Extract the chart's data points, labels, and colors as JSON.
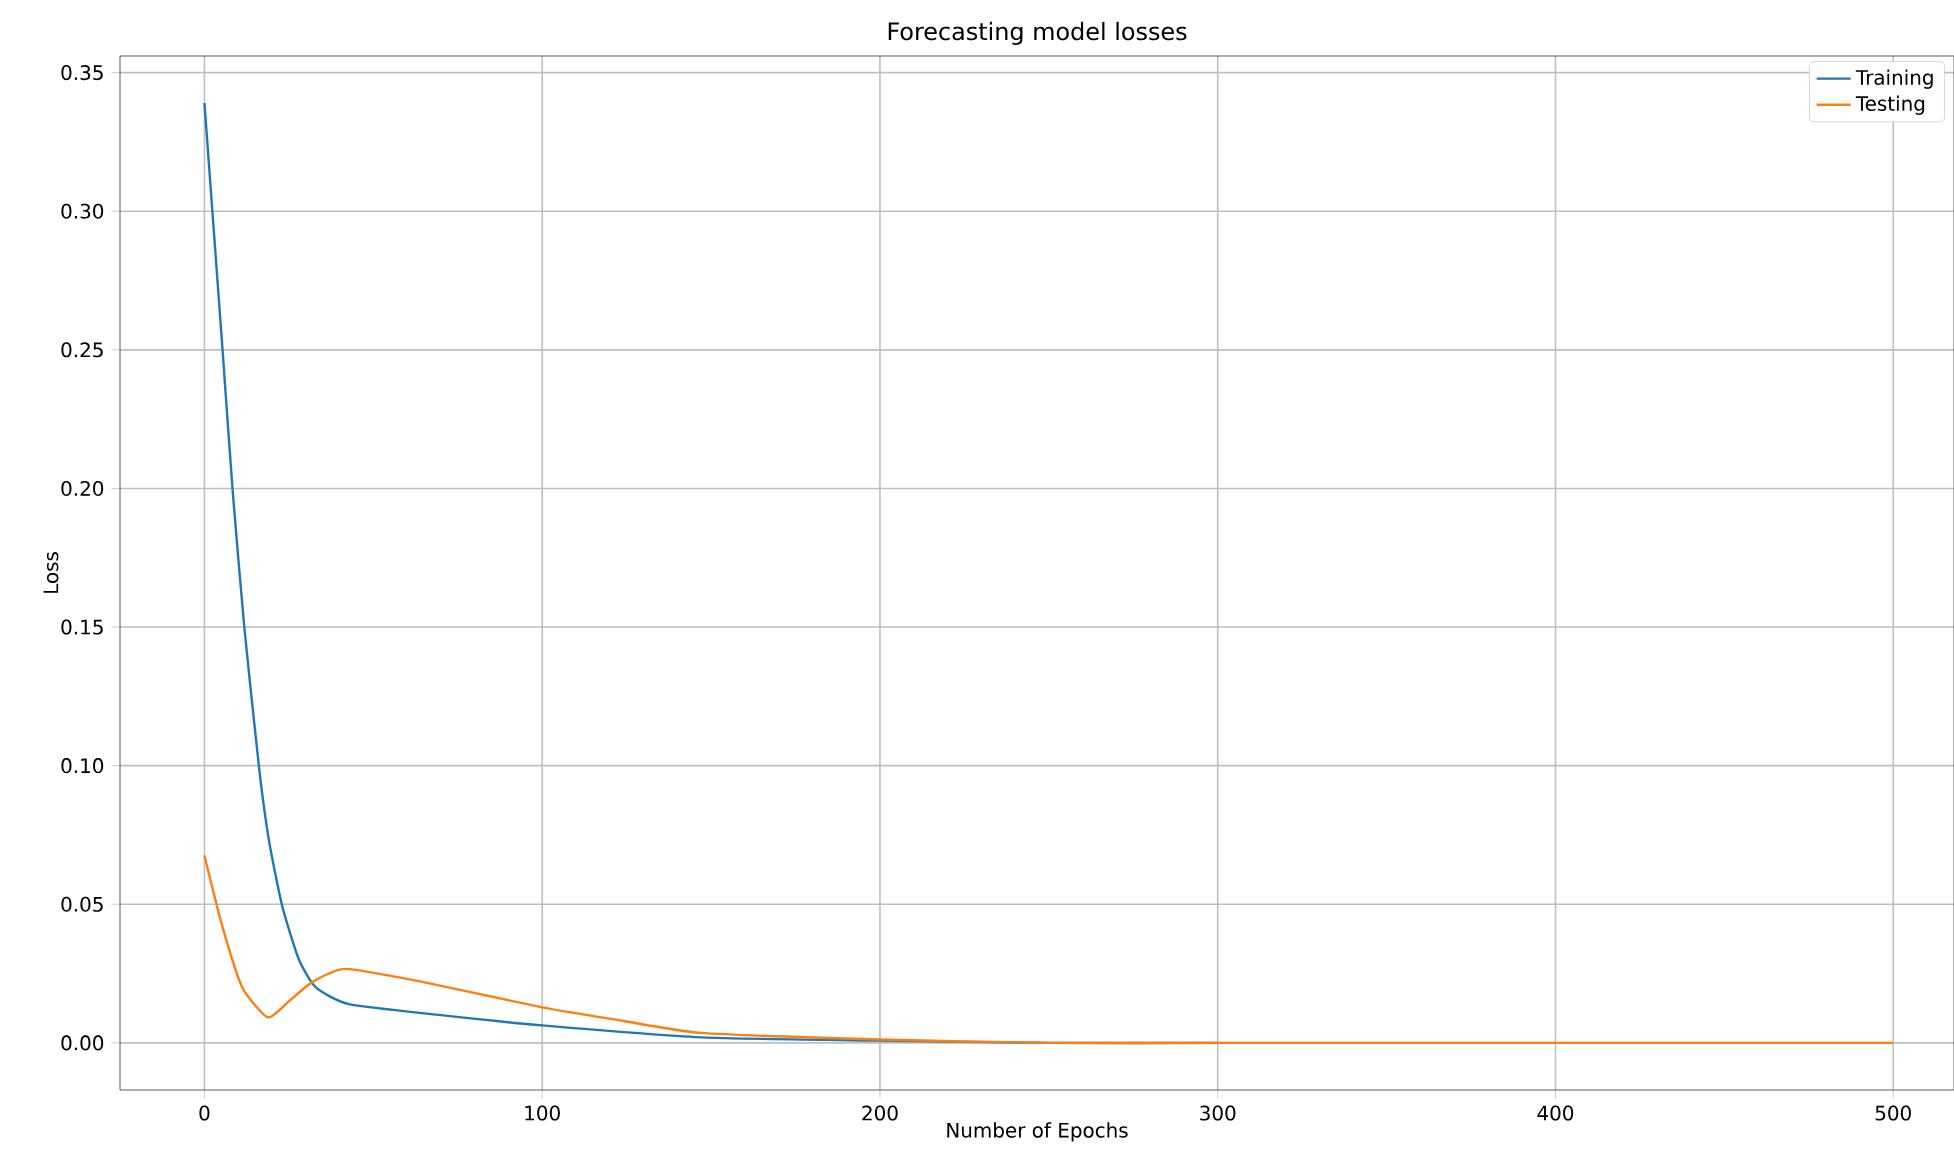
{
  "chart_data": {
    "type": "line",
    "title": "Forecasting model losses",
    "xlabel": "Number of Epochs",
    "ylabel": "Loss",
    "xlim": [
      -25,
      518
    ],
    "ylim": [
      -0.017,
      0.356
    ],
    "xticks": [
      0,
      100,
      200,
      300,
      400,
      500
    ],
    "yticks": [
      {
        "value": 0,
        "label": "0.00"
      },
      {
        "value": 0.05,
        "label": "0.05"
      },
      {
        "value": 0.1,
        "label": "0.10"
      },
      {
        "value": 0.15,
        "label": "0.15"
      },
      {
        "value": 0.2,
        "label": "0.20"
      },
      {
        "value": 0.25,
        "label": "0.25"
      },
      {
        "value": 0.3,
        "label": "0.30"
      },
      {
        "value": 0.35,
        "label": "0.35"
      }
    ],
    "grid": true,
    "legend": "top right",
    "marker": "none",
    "line_style": "solid",
    "series": [
      {
        "name": "Training",
        "color": "#1f77b4",
        "x": [
          0,
          5.3,
          8.3,
          11.8,
          16.2,
          19.1,
          23.1,
          28,
          33,
          42.8,
          70,
          100,
          147,
          200,
          250,
          300
        ],
        "values": [
          0.339,
          0.251,
          0.2,
          0.15,
          0.099,
          0.073,
          0.049,
          0.03,
          0.02,
          0.014,
          0.01,
          0.0063,
          0.002,
          0.0008,
          0,
          0
        ]
      },
      {
        "name": "Testing",
        "color": "#ff7f0e",
        "x": [
          0,
          5.3,
          11.2,
          18.8,
          25,
          32,
          41.8,
          64.5,
          100,
          123.7,
          147,
          200,
          250,
          300,
          400,
          500
        ],
        "values": [
          0.0676,
          0.042,
          0.02,
          0.0092,
          0.015,
          0.022,
          0.0267,
          0.022,
          0.0128,
          0.008,
          0.0036,
          0.0012,
          0,
          0,
          0,
          0
        ]
      }
    ]
  }
}
